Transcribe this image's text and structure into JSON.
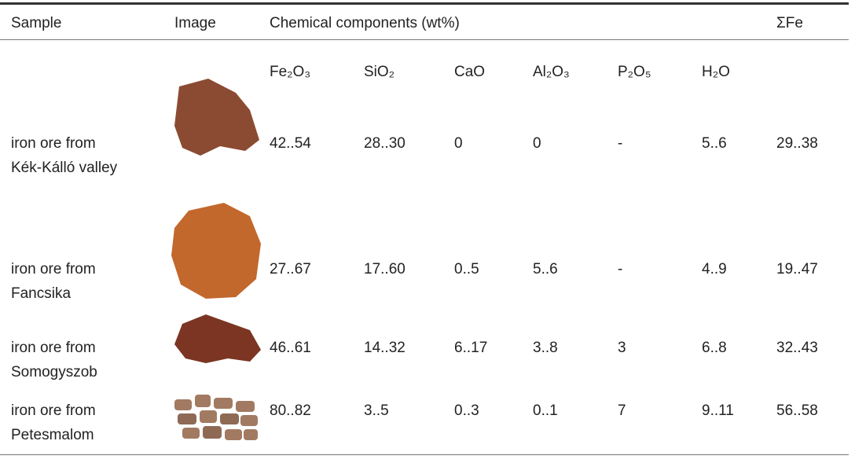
{
  "table": {
    "header": [
      "Sample",
      "Image",
      "Chemical components (wt%)",
      "ΣFe"
    ],
    "subheader": [
      "Fe₂O₃",
      "SiO₂",
      "CaO",
      "Al₂O₃",
      "P₂O₅",
      "H₂O"
    ],
    "rows": [
      {
        "sample": "iron ore from Kék-Kálló valley",
        "values": [
          "42..54",
          "28..30",
          "0",
          "0",
          "-",
          "5..6",
          "29..38"
        ]
      },
      {
        "sample": "iron ore from Fancsika",
        "values": [
          "27..67",
          "17..60",
          "0..5",
          "5..6",
          "-",
          "4..9",
          "19..47"
        ]
      },
      {
        "sample": "iron ore from Somogyszob",
        "values": [
          "46..61",
          "14..32",
          "6..17",
          "3..8",
          "3",
          "6..8",
          "32..43"
        ]
      },
      {
        "sample": "iron ore from Petesmalom",
        "values": [
          "80..82",
          "3..5",
          "0..3",
          "0..1",
          "7",
          "9..11",
          "56..58"
        ]
      }
    ]
  }
}
